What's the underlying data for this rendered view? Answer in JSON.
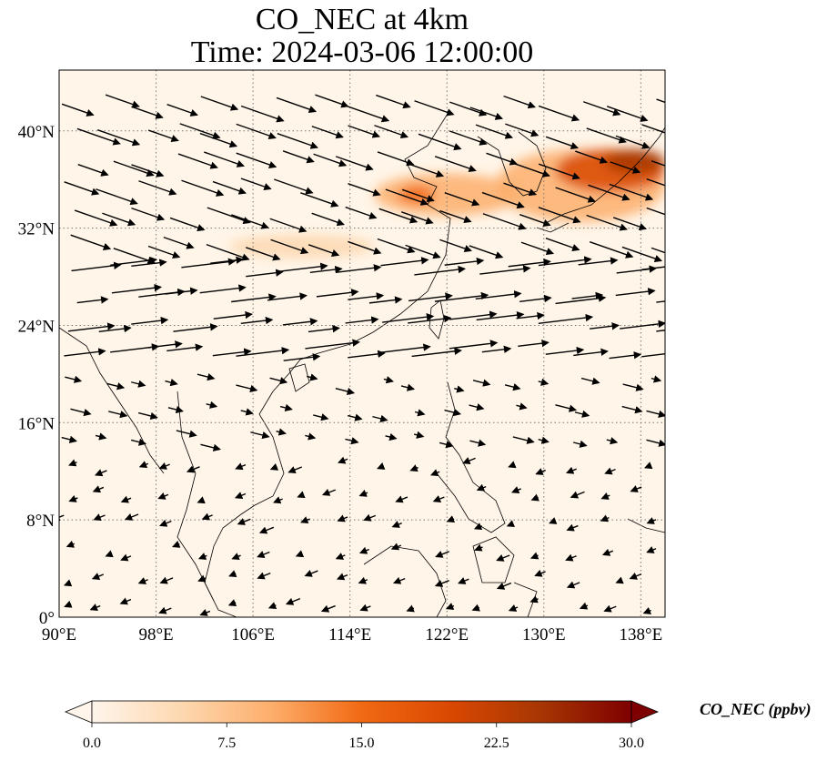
{
  "title": {
    "line1": "CO_NEC at 4km",
    "line2": "Time: 2024-03-06 12:00:00"
  },
  "map": {
    "extent": {
      "lon": [
        90,
        140
      ],
      "lat": [
        0,
        45
      ]
    },
    "lon_ticks": [
      {
        "value": 90,
        "label": "90°E"
      },
      {
        "value": 98,
        "label": "98°E"
      },
      {
        "value": 106,
        "label": "106°E"
      },
      {
        "value": 114,
        "label": "114°E"
      },
      {
        "value": 122,
        "label": "122°E"
      },
      {
        "value": 130,
        "label": "130°E"
      },
      {
        "value": 138,
        "label": "138°E"
      }
    ],
    "lat_ticks": [
      {
        "value": 0,
        "label": "0°"
      },
      {
        "value": 8,
        "label": "8°N"
      },
      {
        "value": 16,
        "label": "16°N"
      },
      {
        "value": 24,
        "label": "24°N"
      },
      {
        "value": 32,
        "label": "32°N"
      },
      {
        "value": 40,
        "label": "40°N"
      }
    ],
    "gridlines": true,
    "background_color": "#fff5e8",
    "coastline_color": "#000000",
    "plume_regions": [
      {
        "lon": [
          104,
          116
        ],
        "lat": [
          29.5,
          31.5
        ],
        "value": 7
      },
      {
        "lon": [
          116,
          128
        ],
        "lat": [
          33,
          36.5
        ],
        "value": 9
      },
      {
        "lon": [
          118,
          121
        ],
        "lat": [
          34,
          35.5
        ],
        "value": 17
      },
      {
        "lon": [
          126,
          140
        ],
        "lat": [
          32.5,
          38.5
        ],
        "value": 10
      },
      {
        "lon": [
          131,
          140
        ],
        "lat": [
          35,
          38.5
        ],
        "value": 18
      },
      {
        "lon": [
          135,
          140
        ],
        "lat": [
          36.5,
          38.5
        ],
        "value": 24
      }
    ]
  },
  "wind_vectors_note": "",
  "colorbar": {
    "label": "CO_NEC (ppbv)",
    "range": [
      0,
      30
    ],
    "ticks": [
      "0.0",
      "7.5",
      "15.0",
      "22.5",
      "30.0"
    ],
    "extend": "both",
    "colormap": [
      "#fff5eb",
      "#fdd8b0",
      "#fdae6b",
      "#f16913",
      "#d94801",
      "#a63603",
      "#7f0000"
    ]
  }
}
